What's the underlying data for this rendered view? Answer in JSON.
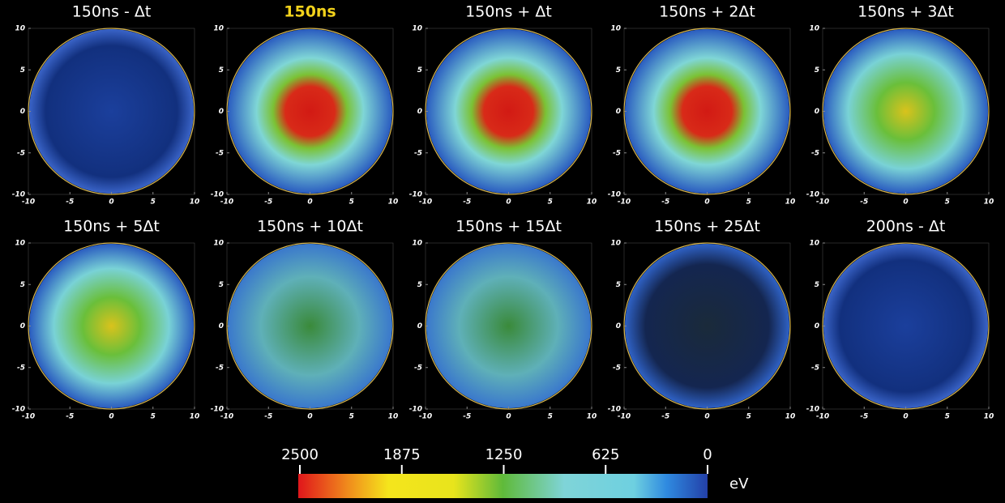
{
  "chart_data": [
    {
      "type": "density",
      "title": "150ns - Δt",
      "xlim": [
        -10,
        10
      ],
      "ylim": [
        -10,
        10
      ],
      "xticks": [
        -10,
        -5,
        0,
        5,
        10
      ],
      "yticks": [
        -10,
        -5,
        0,
        5,
        10
      ]
    },
    {
      "type": "density",
      "title": "150ns",
      "title_color": "#f2d21b",
      "xlim": [
        -10,
        10
      ],
      "ylim": [
        -10,
        10
      ],
      "xticks": [
        -10,
        -5,
        0,
        5,
        10
      ],
      "yticks": [
        -10,
        -5,
        0,
        5,
        10
      ]
    },
    {
      "type": "density",
      "title": "150ns + Δt",
      "xlim": [
        -10,
        10
      ],
      "ylim": [
        -10,
        10
      ],
      "xticks": [
        -10,
        -5,
        0,
        5,
        10
      ],
      "yticks": [
        -10,
        -5,
        0,
        5,
        10
      ]
    },
    {
      "type": "density",
      "title": "150ns + 2Δt",
      "xlim": [
        -10,
        10
      ],
      "ylim": [
        -10,
        10
      ],
      "xticks": [
        -10,
        -5,
        0,
        5,
        10
      ],
      "yticks": [
        -10,
        -5,
        0,
        5,
        10
      ]
    },
    {
      "type": "density",
      "title": "150ns + 3Δt",
      "xlim": [
        -10,
        10
      ],
      "ylim": [
        -10,
        10
      ],
      "xticks": [
        -10,
        -5,
        0,
        5,
        10
      ],
      "yticks": [
        -10,
        -5,
        0,
        5,
        10
      ]
    },
    {
      "type": "density",
      "title": "150ns + 5Δt",
      "xlim": [
        -10,
        10
      ],
      "ylim": [
        -10,
        10
      ],
      "xticks": [
        -10,
        -5,
        0,
        5,
        10
      ],
      "yticks": [
        -10,
        -5,
        0,
        5,
        10
      ]
    },
    {
      "type": "density",
      "title": "150ns + 10Δt",
      "xlim": [
        -10,
        10
      ],
      "ylim": [
        -10,
        10
      ],
      "xticks": [
        -10,
        -5,
        0,
        5,
        10
      ],
      "yticks": [
        -10,
        -5,
        0,
        5,
        10
      ]
    },
    {
      "type": "density",
      "title": "150ns + 15Δt",
      "xlim": [
        -10,
        10
      ],
      "ylim": [
        -10,
        10
      ],
      "xticks": [
        -10,
        -5,
        0,
        5,
        10
      ],
      "yticks": [
        -10,
        -5,
        0,
        5,
        10
      ]
    },
    {
      "type": "density",
      "title": "150ns + 25Δt",
      "xlim": [
        -10,
        10
      ],
      "ylim": [
        -10,
        10
      ],
      "xticks": [
        -10,
        -5,
        0,
        5,
        10
      ],
      "yticks": [
        -10,
        -5,
        0,
        5,
        10
      ]
    },
    {
      "type": "density",
      "title": "200ns - Δt",
      "xlim": [
        -10,
        10
      ],
      "ylim": [
        -10,
        10
      ],
      "xticks": [
        -10,
        -5,
        0,
        5,
        10
      ],
      "yticks": [
        -10,
        -5,
        0,
        5,
        10
      ]
    }
  ],
  "colorbar": {
    "ticks": [
      2500,
      1875,
      1250,
      625,
      0
    ],
    "label": "eV"
  }
}
